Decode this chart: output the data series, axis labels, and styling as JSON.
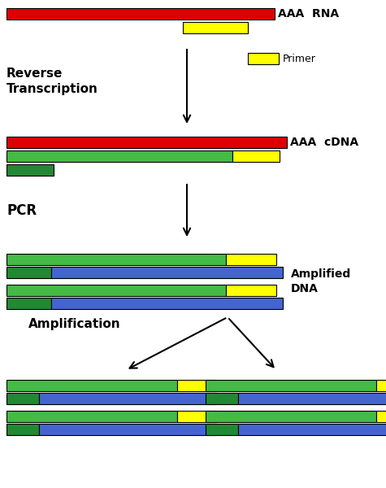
{
  "bg_color": "#ffffff",
  "colors": {
    "red": "#dd0000",
    "yellow": "#ffff00",
    "green": "#44bb44",
    "blue": "#4466cc",
    "dark_green": "#228833",
    "black": "#000000"
  },
  "rna_label": "AAA  RNA",
  "cdna_label": "AAA  cDNA",
  "primer_label": "Primer",
  "rev_trans_label": "Reverse\nTranscription",
  "pcr_label": "PCR",
  "amplified_label": "Amplified\nDNA",
  "amplification_label": "Amplification"
}
